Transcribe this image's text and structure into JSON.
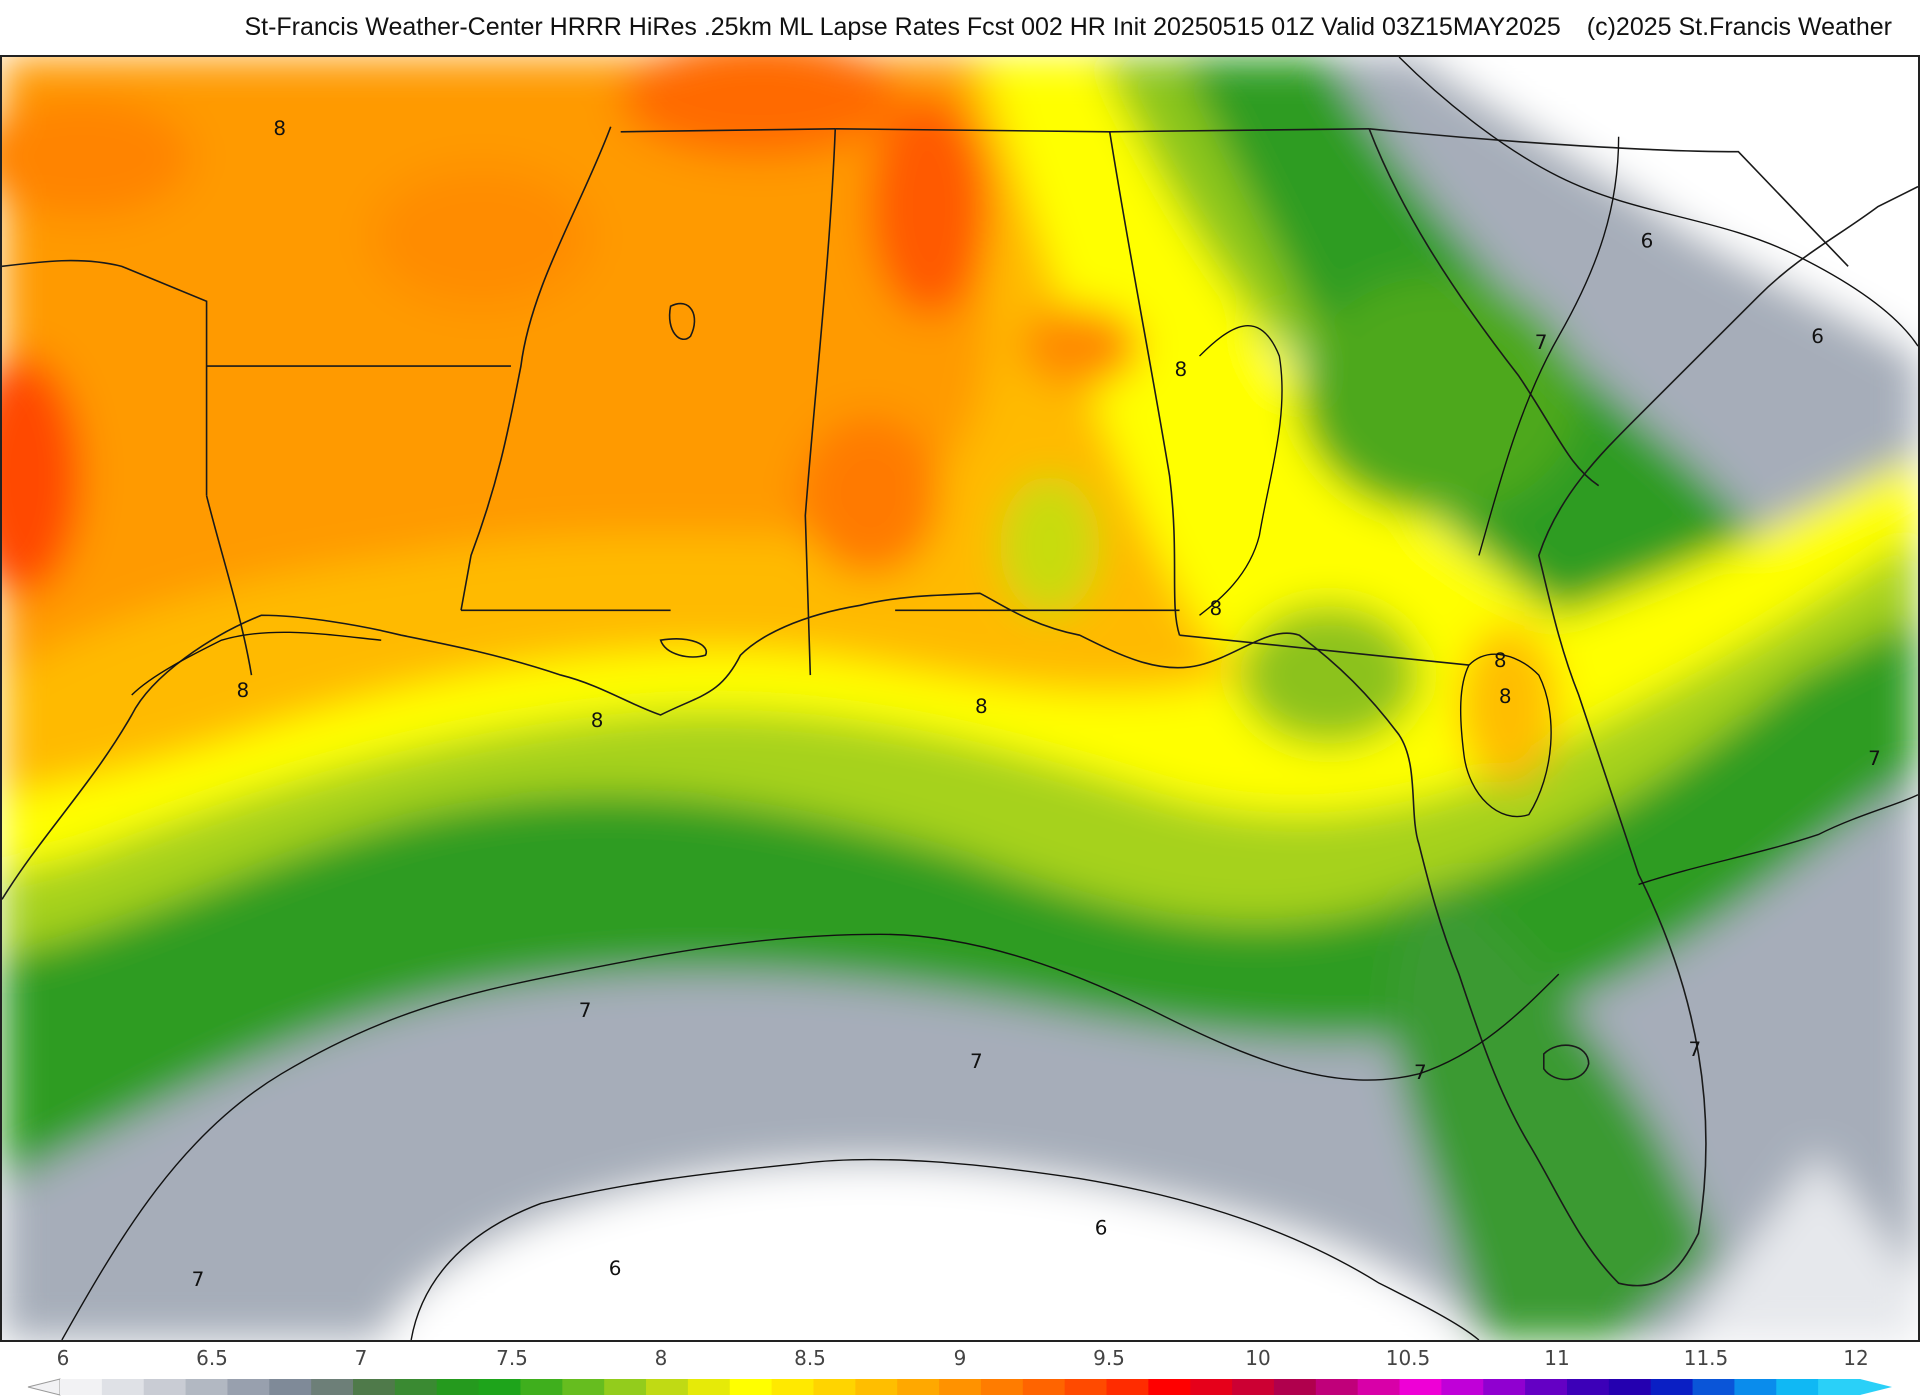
{
  "header": {
    "title": "St-Francis Weather-Center HRRR HiRes .25km ML Lapse Rates  Fcst 002 HR Init 20250515 01Z  Valid 03Z15MAY2025",
    "credit": "(c)2025 St.Francis Weather"
  },
  "colorbar": {
    "ticks": [
      "6",
      "6.5",
      "7",
      "7.5",
      "8",
      "8.5",
      "9",
      "9.5",
      "10",
      "10.5",
      "11",
      "11.5",
      "12"
    ],
    "colors": [
      "#f2f2f4",
      "#dfe1e6",
      "#c9ccd4",
      "#b2b8c2",
      "#98a0ae",
      "#7f8a98",
      "#6d7f78",
      "#4f7a4a",
      "#3a8a32",
      "#259a1e",
      "#1ea41b",
      "#3faf1d",
      "#66bd1f",
      "#93cc1c",
      "#c0da14",
      "#e6ea08",
      "#ffff00",
      "#ffe900",
      "#ffd400",
      "#ffbe00",
      "#ffa800",
      "#ff9200",
      "#ff7c00",
      "#ff6400",
      "#ff4a00",
      "#ff2c00",
      "#ff0000",
      "#e6001a",
      "#cc0033",
      "#b0004d",
      "#c0007a",
      "#d800a8",
      "#ee00d6",
      "#c000d8",
      "#9000d0",
      "#6400c4",
      "#3c00b8",
      "#2400b0",
      "#0a1fc4",
      "#0a55d8",
      "#0a8cec",
      "#10b8f4",
      "#2ad0f8"
    ]
  },
  "map": {
    "contour_labels": [
      "8",
      "8",
      "8",
      "8",
      "8",
      "8",
      "8",
      "8",
      "6",
      "6",
      "6",
      "6",
      "7",
      "7",
      "7",
      "7",
      "7",
      "7",
      "7"
    ],
    "legend_colors": {
      "deep": "#ff3c00",
      "orange": "#ff8c00",
      "gold": "#ffb000",
      "yellow": "#ffff00",
      "lime": "#a8d81a",
      "green": "#2fa41c",
      "darkgreen": "#1e8a1a",
      "graygreen": "#6d8070",
      "slate": "#8b95a4",
      "lightgray": "#c5cad2",
      "white": "#ffffff"
    }
  }
}
